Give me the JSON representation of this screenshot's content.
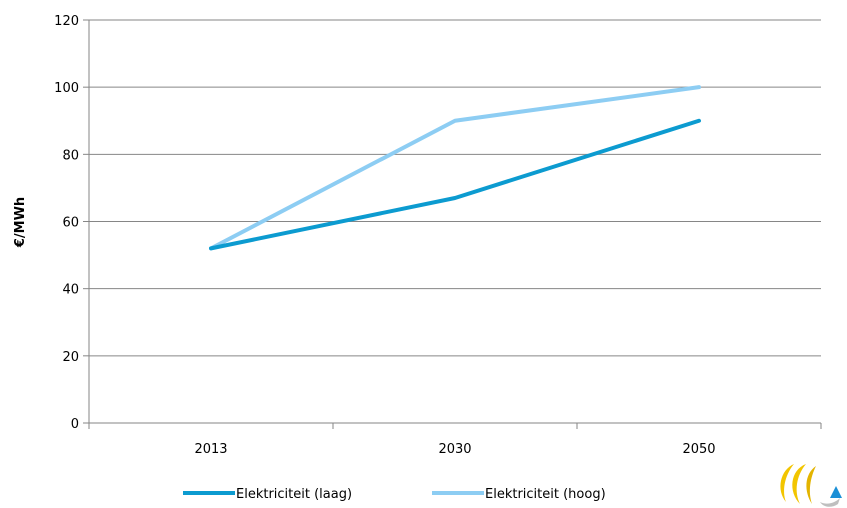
{
  "chart_data": {
    "type": "line",
    "categories": [
      "2013",
      "2030",
      "2050"
    ],
    "ylabel": "€/MWh",
    "ylim": [
      0,
      120
    ],
    "yticks": [
      0,
      20,
      40,
      60,
      80,
      100,
      120
    ],
    "grid": true,
    "legend_position": "bottom",
    "series": [
      {
        "name": "Elektriciteit (laag)",
        "color": "#0c9bd0",
        "values": [
          52,
          67,
          90
        ]
      },
      {
        "name": "Elektriciteit (hoog)",
        "color": "#8dcdf3",
        "values": [
          52,
          90,
          100
        ]
      }
    ]
  },
  "logo": {
    "icon": "company-logo-icon",
    "colors": [
      "#f2c500",
      "#1a8fd6"
    ]
  }
}
